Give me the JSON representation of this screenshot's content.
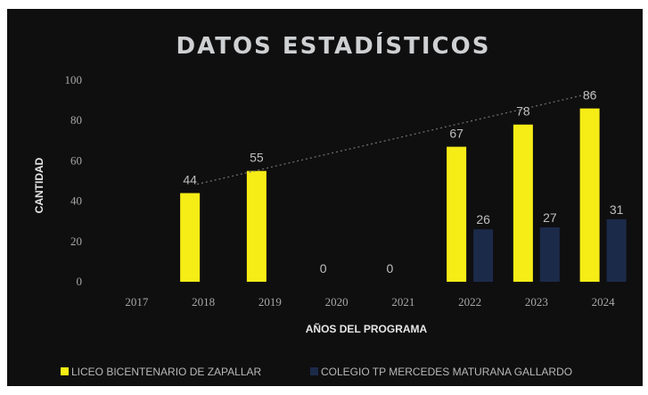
{
  "chart_data": {
    "type": "bar",
    "title": "DATOS ESTADÍSTICOS",
    "xlabel": "AÑOS DEL PROGRAMA",
    "ylabel": "CANTIDAD",
    "categories": [
      "2017",
      "2018",
      "2019",
      "2020",
      "2021",
      "2022",
      "2023",
      "2024"
    ],
    "ylim": [
      0,
      100
    ],
    "yticks": [
      0,
      20,
      40,
      60,
      80,
      100
    ],
    "series": [
      {
        "name": "LICEO BICENTENARIO DE ZAPALLAR",
        "color": "#f6ec16",
        "values": [
          null,
          44,
          55,
          0,
          0,
          67,
          78,
          86
        ],
        "labels": [
          "",
          "44",
          "55",
          "0",
          "0",
          "67",
          "78",
          "86"
        ]
      },
      {
        "name": "COLEGIO TP MERCEDES MATURANA GALLARDO",
        "color": "#1c2a4a",
        "values": [
          null,
          null,
          null,
          null,
          null,
          26,
          27,
          31
        ],
        "labels": [
          "",
          "",
          "",
          "",
          "",
          "26",
          "27",
          "31"
        ]
      }
    ],
    "trendline": true,
    "legend_position": "bottom",
    "grid": false
  }
}
